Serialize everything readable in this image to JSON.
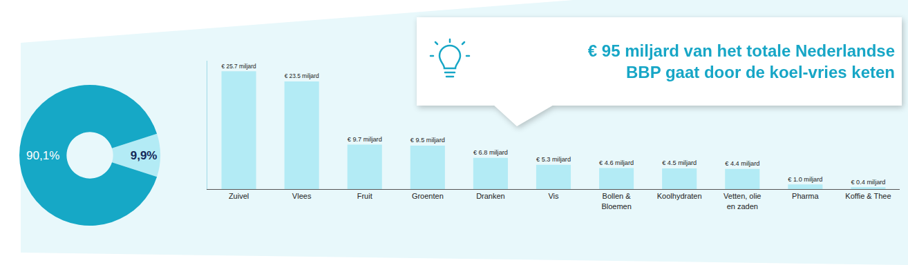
{
  "chart_data": [
    {
      "type": "pie",
      "values": [
        9.9,
        90.1
      ],
      "value_labels": [
        "9,9%",
        "90,1%"
      ],
      "colors": [
        "#b3ebf5",
        "#16a8c6"
      ],
      "data_labels": true
    },
    {
      "type": "bar",
      "categories": [
        "Zuivel",
        "Vlees",
        "Fruit",
        "Groenten",
        "Dranken",
        "Vis",
        "Bollen & Bloemen",
        "Koolhydraten",
        "Vetten, olie en zaden",
        "Pharma",
        "Koffie & Thee"
      ],
      "values": [
        25.7,
        23.5,
        9.7,
        9.5,
        6.8,
        5.3,
        4.6,
        4.5,
        4.4,
        1.0,
        0.4
      ],
      "value_labels": [
        "€ 25.7 miljard",
        "€ 23.5 miljard",
        "€ 9.7 miljard",
        "€ 9.5 miljard",
        "€ 6.8 miljard",
        "€ 5.3 miljard",
        "€ 4.6 miljard",
        "€ 4.5 miljard",
        "€ 4.4 miljard",
        "€ 1.0 miljard",
        "€ 0.4 miljard"
      ],
      "color": "#b3ebf5",
      "ylim": [
        0,
        28
      ],
      "data_labels": true,
      "tick_labels": "x",
      "annotations": [
        "€ 95 miljard van het totale Nederlandse BBP gaat door de koel-vries keten"
      ]
    }
  ]
}
